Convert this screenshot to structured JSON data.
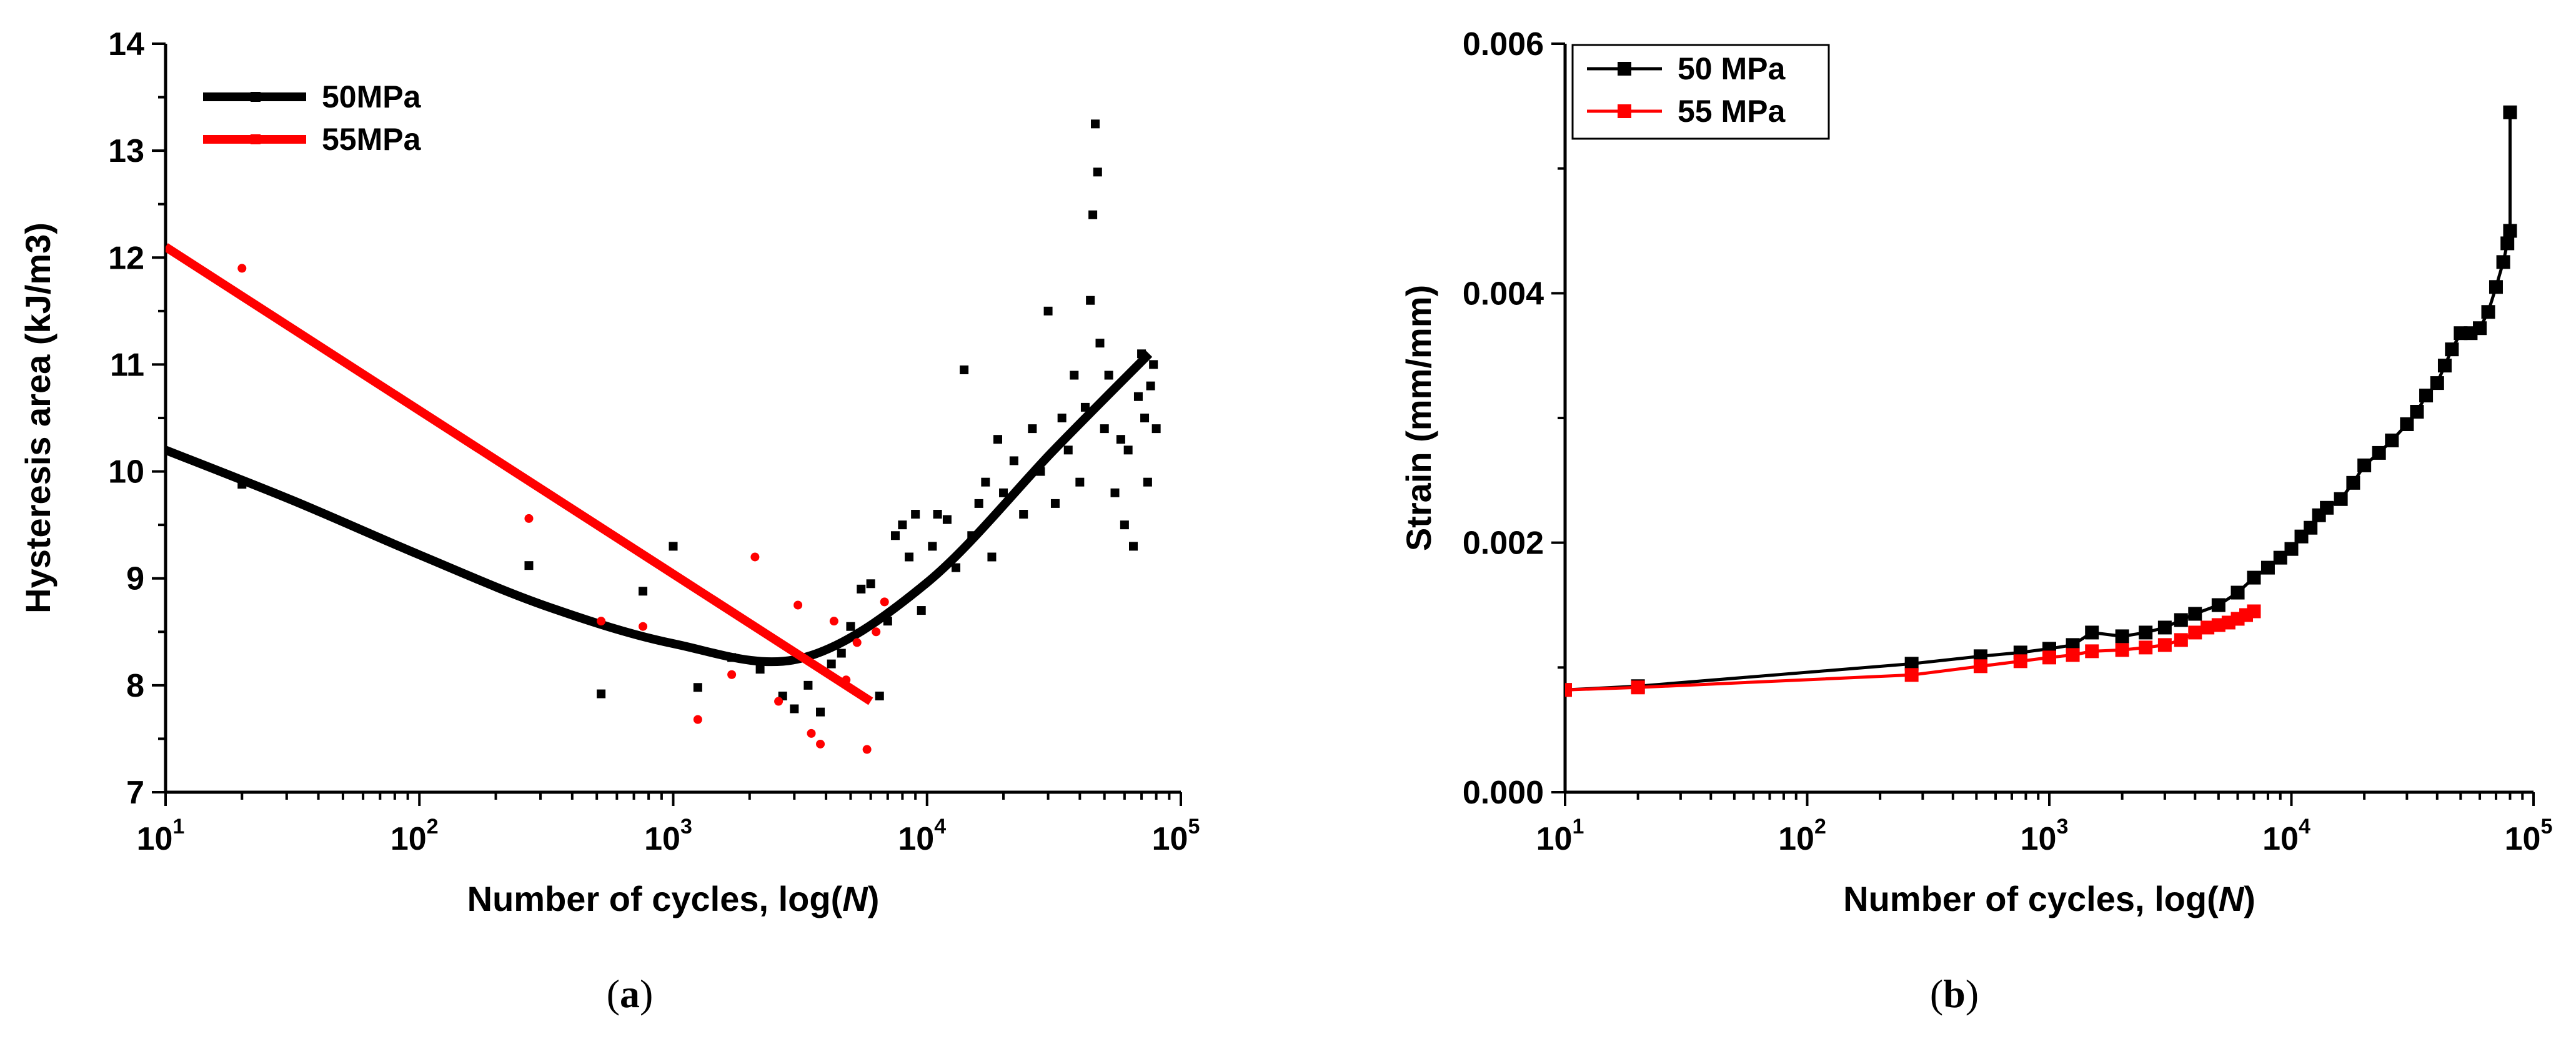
{
  "chart_data": [
    {
      "id": "a",
      "type": "scatter",
      "caption_label": "a",
      "title": "",
      "xlabel": "Number of cycles, log(",
      "xlabel_italic": "N",
      "xlabel_end": ")",
      "ylabel": "Hysteresis area (kJ/m3)",
      "xscale": "log",
      "xlim": [
        10,
        100000
      ],
      "ylim": [
        7,
        14
      ],
      "xticks": [
        {
          "base": "10",
          "exp": "1",
          "value": 10
        },
        {
          "base": "10",
          "exp": "2",
          "value": 100
        },
        {
          "base": "10",
          "exp": "3",
          "value": 1000
        },
        {
          "base": "10",
          "exp": "4",
          "value": 10000
        },
        {
          "base": "10",
          "exp": "5",
          "value": 100000
        }
      ],
      "yticks": [
        7,
        8,
        9,
        10,
        11,
        12,
        13,
        14
      ],
      "legend_position": "top-left",
      "series": [
        {
          "name": "50MPa",
          "color": "#000000",
          "marker": "square",
          "points": [
            [
              20,
              9.88
            ],
            [
              270,
              9.12
            ],
            [
              520,
              7.92
            ],
            [
              760,
              8.88
            ],
            [
              1000,
              9.3
            ],
            [
              1250,
              7.98
            ],
            [
              1700,
              8.26
            ],
            [
              2200,
              8.15
            ],
            [
              2700,
              7.9
            ],
            [
              3000,
              7.78
            ],
            [
              3400,
              8.0
            ],
            [
              3800,
              7.75
            ],
            [
              4200,
              8.2
            ],
            [
              4600,
              8.3
            ],
            [
              5000,
              8.55
            ],
            [
              5500,
              8.9
            ],
            [
              6000,
              8.95
            ],
            [
              6500,
              7.9
            ],
            [
              7000,
              8.6
            ],
            [
              7500,
              9.4
            ],
            [
              8000,
              9.5
            ],
            [
              8500,
              9.2
            ],
            [
              9000,
              9.6
            ],
            [
              9500,
              8.7
            ],
            [
              10500,
              9.3
            ],
            [
              11000,
              9.6
            ],
            [
              12000,
              9.55
            ],
            [
              13000,
              9.1
            ],
            [
              14000,
              10.95
            ],
            [
              15000,
              9.4
            ],
            [
              16000,
              9.7
            ],
            [
              17000,
              9.9
            ],
            [
              18000,
              9.2
            ],
            [
              19000,
              10.3
            ],
            [
              20000,
              9.8
            ],
            [
              22000,
              10.1
            ],
            [
              24000,
              9.6
            ],
            [
              26000,
              10.4
            ],
            [
              28000,
              10.0
            ],
            [
              30000,
              11.5
            ],
            [
              32000,
              9.7
            ],
            [
              34000,
              10.5
            ],
            [
              36000,
              10.2
            ],
            [
              38000,
              10.9
            ],
            [
              40000,
              9.9
            ],
            [
              42000,
              10.6
            ],
            [
              44000,
              11.6
            ],
            [
              45000,
              12.4
            ],
            [
              46000,
              13.25
            ],
            [
              47000,
              12.8
            ],
            [
              48000,
              11.2
            ],
            [
              50000,
              10.4
            ],
            [
              52000,
              10.9
            ],
            [
              55000,
              9.8
            ],
            [
              58000,
              10.3
            ],
            [
              60000,
              9.5
            ],
            [
              62000,
              10.2
            ],
            [
              65000,
              9.3
            ],
            [
              68000,
              10.7
            ],
            [
              70000,
              11.1
            ],
            [
              72000,
              10.5
            ],
            [
              74000,
              9.9
            ],
            [
              76000,
              10.8
            ],
            [
              78000,
              11.0
            ],
            [
              80000,
              10.4
            ]
          ]
        },
        {
          "name": "55MPa",
          "color": "#ff0000",
          "marker": "circle",
          "points": [
            [
              20,
              11.9
            ],
            [
              270,
              9.56
            ],
            [
              520,
              8.6
            ],
            [
              760,
              8.55
            ],
            [
              1250,
              7.68
            ],
            [
              1700,
              8.1
            ],
            [
              2100,
              9.2
            ],
            [
              2600,
              7.85
            ],
            [
              3100,
              8.75
            ],
            [
              3500,
              7.55
            ],
            [
              3800,
              7.45
            ],
            [
              4300,
              8.6
            ],
            [
              4800,
              8.05
            ],
            [
              5300,
              8.4
            ],
            [
              5800,
              7.4
            ],
            [
              6300,
              8.5
            ],
            [
              6800,
              8.78
            ]
          ]
        }
      ],
      "fits": [
        {
          "name": "50MPa",
          "color": "#000000",
          "kind": "polynomial-in-logN",
          "x_range": [
            10,
            75000
          ],
          "knots": [
            [
              10,
              10.2
            ],
            [
              31.6,
              9.73
            ],
            [
              100,
              9.22
            ],
            [
              316,
              8.74
            ],
            [
              1000,
              8.39
            ],
            [
              3162,
              8.25
            ],
            [
              10000,
              8.96
            ],
            [
              31623,
              10.2
            ],
            [
              75000,
              11.1
            ]
          ]
        },
        {
          "name": "55MPa",
          "color": "#ff0000",
          "kind": "linear-in-logN",
          "x_range": [
            10,
            6000
          ],
          "endpoints": [
            [
              10,
              12.1
            ],
            [
              6000,
              7.85
            ]
          ]
        }
      ]
    },
    {
      "id": "b",
      "type": "line",
      "caption_label": "b",
      "title": "",
      "xlabel": "Number of cycles, log(",
      "xlabel_italic": "N",
      "xlabel_end": ")",
      "ylabel": "Strain (mm/mm)",
      "xscale": "log",
      "xlim": [
        10,
        100000
      ],
      "ylim": [
        0,
        0.006
      ],
      "xticks": [
        {
          "base": "10",
          "exp": "1",
          "value": 10
        },
        {
          "base": "10",
          "exp": "2",
          "value": 100
        },
        {
          "base": "10",
          "exp": "3",
          "value": 1000
        },
        {
          "base": "10",
          "exp": "4",
          "value": 10000
        },
        {
          "base": "10",
          "exp": "5",
          "value": 100000
        }
      ],
      "yticks": [
        {
          "value": 0,
          "label": "0.000"
        },
        {
          "value": 0.002,
          "label": "0.002"
        },
        {
          "value": 0.004,
          "label": "0.004"
        },
        {
          "value": 0.006,
          "label": "0.006"
        }
      ],
      "legend_position": "top-left",
      "series": [
        {
          "name": "50 MPa",
          "color": "#000000",
          "marker": "square",
          "points": [
            [
              10,
              0.00082
            ],
            [
              20,
              0.00085
            ],
            [
              270,
              0.00103
            ],
            [
              520,
              0.00109
            ],
            [
              760,
              0.00112
            ],
            [
              1000,
              0.00115
            ],
            [
              1250,
              0.00118
            ],
            [
              1500,
              0.00128
            ],
            [
              2000,
              0.00125
            ],
            [
              2500,
              0.00128
            ],
            [
              3000,
              0.00132
            ],
            [
              3500,
              0.00138
            ],
            [
              4000,
              0.00143
            ],
            [
              5000,
              0.0015
            ],
            [
              6000,
              0.0016
            ],
            [
              7000,
              0.00172
            ],
            [
              8000,
              0.0018
            ],
            [
              9000,
              0.00188
            ],
            [
              10000,
              0.00195
            ],
            [
              11000,
              0.00205
            ],
            [
              12000,
              0.00212
            ],
            [
              13000,
              0.00222
            ],
            [
              14000,
              0.00228
            ],
            [
              16000,
              0.00235
            ],
            [
              18000,
              0.00248
            ],
            [
              20000,
              0.00262
            ],
            [
              23000,
              0.00272
            ],
            [
              26000,
              0.00282
            ],
            [
              30000,
              0.00295
            ],
            [
              33000,
              0.00305
            ],
            [
              36000,
              0.00318
            ],
            [
              40000,
              0.00328
            ],
            [
              43000,
              0.00342
            ],
            [
              46000,
              0.00355
            ],
            [
              50000,
              0.00368
            ],
            [
              55000,
              0.00368
            ],
            [
              60000,
              0.00372
            ],
            [
              65000,
              0.00385
            ],
            [
              70000,
              0.00405
            ],
            [
              75000,
              0.00425
            ],
            [
              78000,
              0.0044
            ],
            [
              80000,
              0.0045
            ],
            [
              80000,
              0.00545
            ]
          ]
        },
        {
          "name": "55 MPa",
          "color": "#ff0000",
          "marker": "square",
          "points": [
            [
              10,
              0.00082
            ],
            [
              20,
              0.00084
            ],
            [
              270,
              0.00094
            ],
            [
              520,
              0.00101
            ],
            [
              760,
              0.00105
            ],
            [
              1000,
              0.00108
            ],
            [
              1250,
              0.0011
            ],
            [
              1500,
              0.00113
            ],
            [
              2000,
              0.00114
            ],
            [
              2500,
              0.00116
            ],
            [
              3000,
              0.00118
            ],
            [
              3500,
              0.00122
            ],
            [
              4000,
              0.00128
            ],
            [
              4500,
              0.00132
            ],
            [
              5000,
              0.00134
            ],
            [
              5500,
              0.00136
            ],
            [
              6000,
              0.00139
            ],
            [
              6500,
              0.00142
            ],
            [
              7000,
              0.00145
            ]
          ]
        }
      ]
    }
  ]
}
